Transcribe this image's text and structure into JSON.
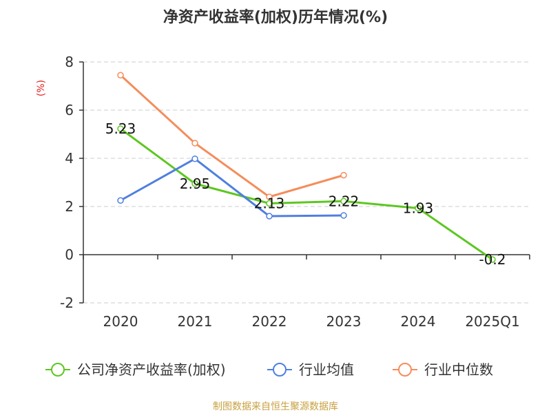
{
  "chart_data": {
    "type": "line",
    "title": "净资产收益率(加权)历年情况(%)",
    "unit_label": "(%)",
    "categories": [
      "2020",
      "2021",
      "2022",
      "2023",
      "2024",
      "2025Q1"
    ],
    "ylim": [
      -2,
      8
    ],
    "yticks": [
      -2,
      0,
      2,
      4,
      6,
      8
    ],
    "grid": true,
    "legend_position": "bottom",
    "series": [
      {
        "name": "公司净资产收益率(加权)",
        "color": "#5cc71f",
        "values": [
          5.23,
          2.95,
          2.13,
          2.22,
          1.93,
          -0.2
        ],
        "labels": [
          "5.23",
          "2.95",
          "2.13",
          "2.22",
          "1.93",
          "-0.2"
        ]
      },
      {
        "name": "行业均值",
        "color": "#4f7fe0",
        "values": [
          2.25,
          3.98,
          1.6,
          1.63,
          null,
          null
        ]
      },
      {
        "name": "行业中位数",
        "color": "#f58c5b",
        "values": [
          7.45,
          4.63,
          2.4,
          3.3,
          null,
          null
        ]
      }
    ],
    "source": "制图数据来自恒生聚源数据库"
  }
}
